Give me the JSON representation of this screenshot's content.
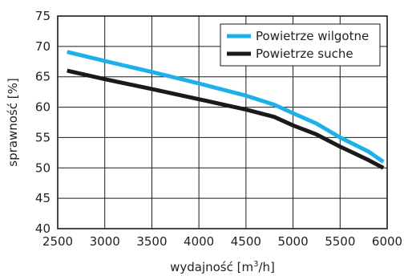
{
  "chart_data": {
    "type": "line",
    "title": "",
    "xlabel": "wydajność [m³/h]",
    "ylabel": "sprawność  [%]",
    "xlim": [
      2500,
      6000
    ],
    "ylim": [
      40,
      75
    ],
    "xticks": [
      "2500",
      "3000",
      "3500",
      "4000",
      "4500",
      "5000",
      "5500",
      "6000"
    ],
    "yticks": [
      "40",
      "45",
      "50",
      "55",
      "60",
      "65",
      "70",
      "75"
    ],
    "grid": true,
    "legend_position": "top-right",
    "series": [
      {
        "name": "Powietrze wilgotne",
        "color": "#1eb0e8",
        "points": [
          [
            2600,
            69.1
          ],
          [
            3000,
            67.6
          ],
          [
            3500,
            65.8
          ],
          [
            4000,
            63.9
          ],
          [
            4500,
            61.9
          ],
          [
            4800,
            60.4
          ],
          [
            5000,
            59.0
          ],
          [
            5250,
            57.3
          ],
          [
            5500,
            55.0
          ],
          [
            5800,
            52.7
          ],
          [
            5960,
            51.0
          ]
        ]
      },
      {
        "name": "Powietrze suche",
        "color": "#1a1a1a",
        "points": [
          [
            2600,
            66.0
          ],
          [
            3000,
            64.6
          ],
          [
            3500,
            63.0
          ],
          [
            4000,
            61.3
          ],
          [
            4500,
            59.6
          ],
          [
            4800,
            58.4
          ],
          [
            5000,
            57.0
          ],
          [
            5250,
            55.5
          ],
          [
            5500,
            53.5
          ],
          [
            5800,
            51.3
          ],
          [
            5960,
            50.0
          ]
        ]
      }
    ]
  }
}
